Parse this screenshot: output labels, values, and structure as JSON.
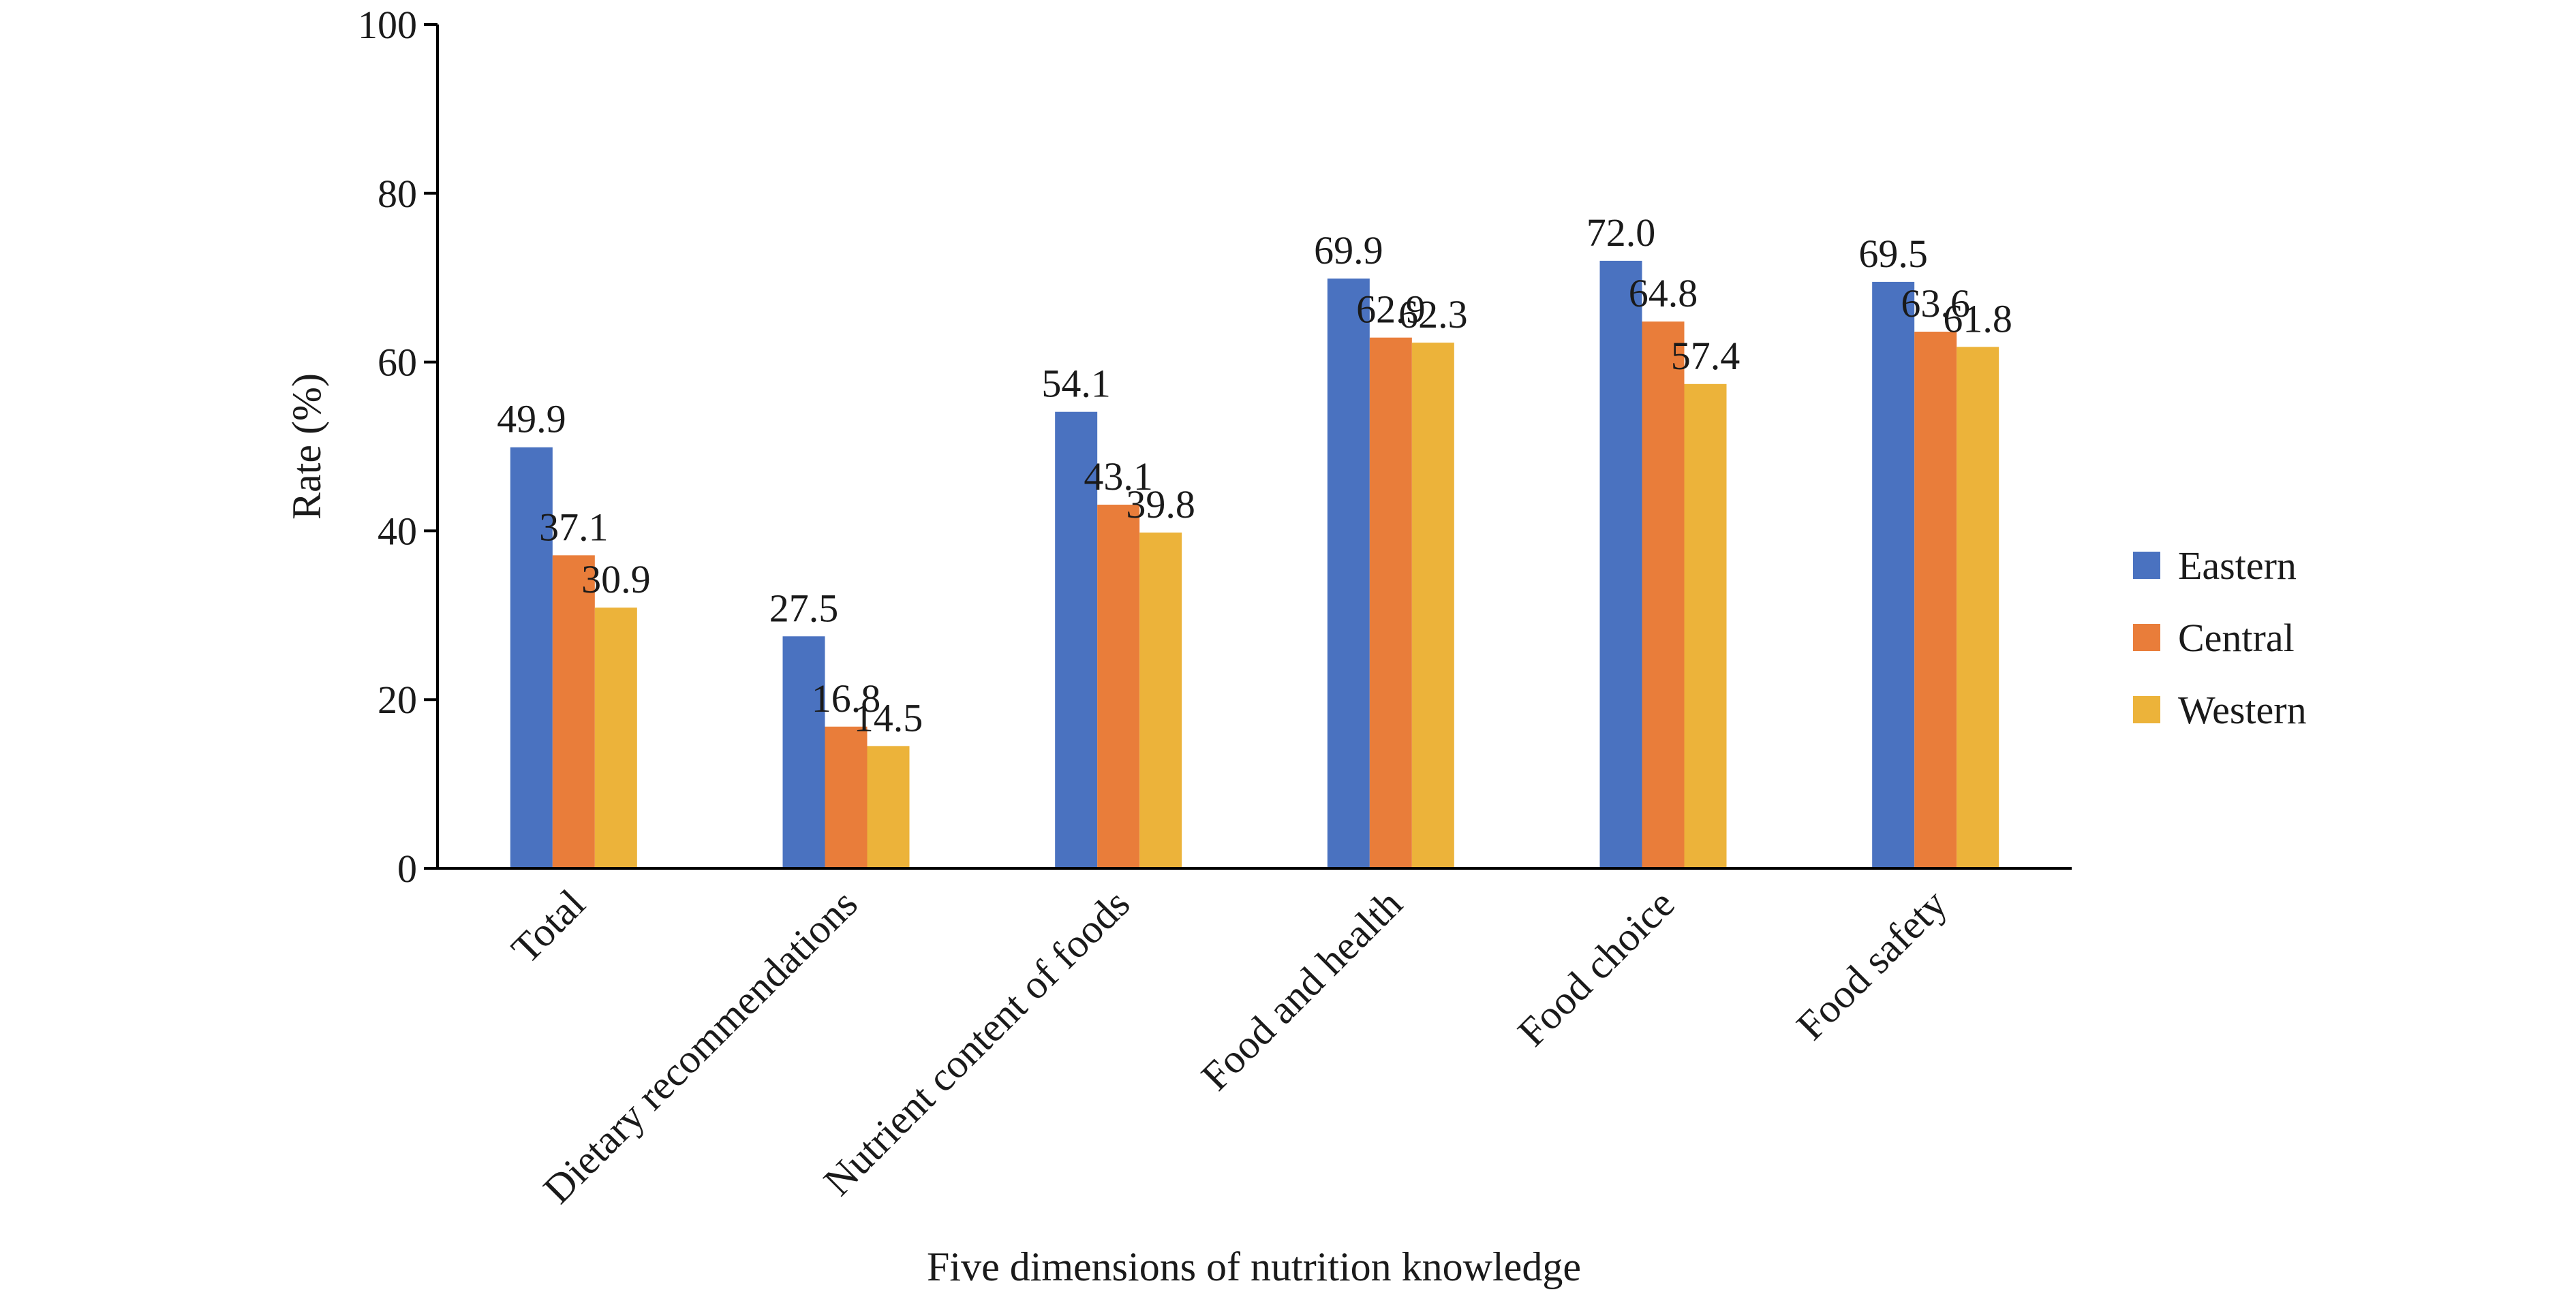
{
  "chart_data": {
    "type": "bar",
    "title": "",
    "xlabel": "Five dimensions of nutrition knowledge",
    "ylabel": "Rate (%)",
    "ylim": [
      0,
      100
    ],
    "yticks": [
      "0",
      "20",
      "40",
      "60",
      "80",
      "100"
    ],
    "grid": false,
    "legend_position": "right",
    "categories": [
      "Total",
      "Dietary recommendations",
      "Nutrient content of foods",
      "Food and health",
      "Food choice",
      "Food safety"
    ],
    "series": [
      {
        "name": "Eastern",
        "color": "#4A72C0",
        "values": [
          49.9,
          27.5,
          54.1,
          69.9,
          72.0,
          69.5
        ],
        "labels": [
          "49.9",
          "27.5",
          "54.1",
          "69.9",
          "72.0",
          "69.5"
        ]
      },
      {
        "name": "Central",
        "color": "#E97D3A",
        "values": [
          37.1,
          16.8,
          43.1,
          62.9,
          64.8,
          63.6
        ],
        "labels": [
          "37.1",
          "16.8",
          "43.1",
          "62.9",
          "64.8",
          "63.6"
        ]
      },
      {
        "name": "Western",
        "color": "#ECB33A",
        "values": [
          30.9,
          14.5,
          39.8,
          62.3,
          57.4,
          61.8
        ],
        "labels": [
          "30.9",
          "14.5",
          "39.8",
          "62.3",
          "57.4",
          "61.8"
        ]
      }
    ]
  }
}
